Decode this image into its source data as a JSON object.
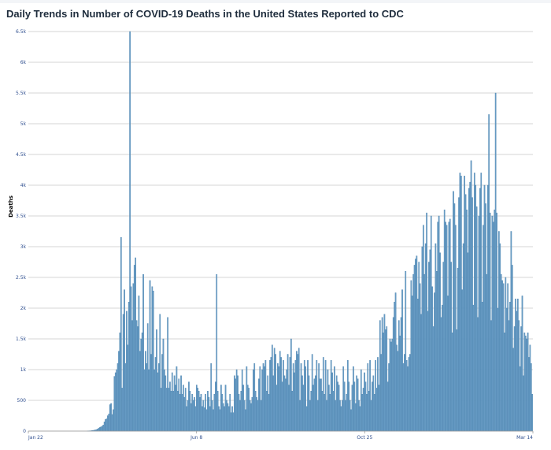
{
  "page": {
    "title": "Daily Trends in Number of COVID-19 Deaths in the United States Reported to CDC"
  },
  "chart_data": {
    "type": "bar",
    "title": "Daily Trends in Number of COVID-19 Deaths in the United States Reported to CDC",
    "xlabel": "",
    "ylabel": "Deaths",
    "ylim": [
      0,
      6500
    ],
    "y_ticks": [
      {
        "value": 0,
        "label": "0"
      },
      {
        "value": 500,
        "label": "500"
      },
      {
        "value": 1000,
        "label": "1k"
      },
      {
        "value": 1500,
        "label": "1.5k"
      },
      {
        "value": 2000,
        "label": "2k"
      },
      {
        "value": 2500,
        "label": "2.5k"
      },
      {
        "value": 3000,
        "label": "3k"
      },
      {
        "value": 3500,
        "label": "3.5k"
      },
      {
        "value": 4000,
        "label": "4k"
      },
      {
        "value": 4500,
        "label": "4.5k"
      },
      {
        "value": 5000,
        "label": "5k"
      },
      {
        "value": 5500,
        "label": "5.5k"
      },
      {
        "value": 6000,
        "label": "6k"
      },
      {
        "value": 6500,
        "label": "6.5k"
      }
    ],
    "x_ticks": [
      "Jan 22",
      "Jun 8",
      "Oct 25",
      "Mar 14"
    ],
    "x_range": [
      "Jan 22",
      "Mar 14"
    ],
    "bar_color": "#6a9ec6",
    "grid": true,
    "series": [
      {
        "values": [
          0,
          0,
          0,
          0,
          0,
          0,
          0,
          0,
          0,
          0,
          0,
          0,
          0,
          0,
          0,
          0,
          0,
          0,
          0,
          0,
          0,
          0,
          0,
          0,
          0,
          0,
          0,
          0,
          0,
          0,
          0,
          0,
          0,
          0,
          0,
          0,
          0,
          0,
          0,
          0,
          0,
          0,
          0,
          0,
          0,
          0,
          0,
          0,
          0,
          0,
          0,
          0,
          0,
          2,
          3,
          5,
          6,
          10,
          12,
          15,
          20,
          25,
          35,
          50,
          60,
          70,
          80,
          100,
          150,
          190,
          200,
          250,
          280,
          430,
          450,
          270,
          350,
          890,
          950,
          1000,
          1100,
          1300,
          1600,
          3150,
          700,
          1900,
          2300,
          1100,
          1950,
          1400,
          2100,
          6500,
          2350,
          1800,
          2400,
          2700,
          2820,
          1800,
          1700,
          2200,
          1300,
          1500,
          1600,
          2550,
          1000,
          1300,
          1100,
          1750,
          1000,
          2450,
          1250,
          2350,
          2280,
          1000,
          1200,
          1650,
          950,
          1100,
          1900,
          700,
          1250,
          1500,
          1000,
          900,
          700,
          1850,
          700,
          800,
          650,
          950,
          650,
          900,
          750,
          1050,
          650,
          850,
          600,
          900,
          600,
          750,
          550,
          700,
          400,
          500,
          800,
          650,
          450,
          600,
          500,
          550,
          400,
          750,
          700,
          650,
          550,
          600,
          400,
          500,
          380,
          600,
          350,
          650,
          550,
          400,
          1100,
          500,
          350,
          600,
          800,
          2550,
          650,
          400,
          350,
          750,
          600,
          450,
          400,
          750,
          500,
          450,
          400,
          600,
          300,
          400,
          300,
          900,
          850,
          1000,
          900,
          600,
          500,
          650,
          1000,
          750,
          500,
          350,
          1050,
          750,
          700,
          500,
          450,
          550,
          1000,
          1100,
          650,
          550,
          500,
          850,
          1050,
          500,
          1000,
          1100,
          1050,
          1150,
          650,
          900,
          600,
          1150,
          1200,
          1400,
          900,
          1350,
          1250,
          750,
          1100,
          1050,
          1300,
          1200,
          800,
          1150,
          900,
          850,
          1000,
          1250,
          750,
          1200,
          1500,
          650,
          1100,
          950,
          1150,
          1300,
          1250,
          1350,
          500,
          1100,
          900,
          750,
          1150,
          1050,
          400,
          1150,
          900,
          500,
          650,
          1250,
          750,
          850,
          900,
          1150,
          500,
          1100,
          850,
          850,
          650,
          1200,
          600,
          1150,
          500,
          1000,
          750,
          600,
          1150,
          950,
          650,
          1050,
          500,
          900,
          800,
          750,
          500,
          400,
          500,
          1050,
          800,
          500,
          600,
          1150,
          800,
          500,
          350,
          750,
          1050,
          800,
          450,
          900,
          850,
          500,
          400,
          1000,
          600,
          700,
          950,
          800,
          600,
          1100,
          650,
          1150,
          500,
          800,
          900,
          600,
          1150,
          700,
          1200,
          750,
          1800,
          1250,
          1850,
          1600,
          1900,
          1650,
          1700,
          800,
          1100,
          1500,
          1450,
          1500,
          1850,
          2100,
          2250,
          1400,
          1300,
          1800,
          1550,
          1850,
          2300,
          1100,
          1250,
          2600,
          1150,
          1050,
          1200,
          1250,
          2450,
          2200,
          2550,
          2700,
          2800,
          2850,
          2150,
          2750,
          2400,
          1900,
          3000,
          3350,
          2550,
          3050,
          3550,
          1950,
          2750,
          2950,
          3500,
          2350,
          1700,
          2250,
          3050,
          2600,
          3400,
          3500,
          2900,
          1850,
          2050,
          2750,
          3600,
          3400,
          3350,
          2200,
          3400,
          3450,
          2750,
          1600,
          3900,
          3700,
          3350,
          1650,
          2650,
          3800,
          4200,
          4150,
          2300,
          3050,
          4150,
          3850,
          3600,
          2900,
          3950,
          4050,
          4400,
          3800,
          2050,
          4200,
          4000,
          3650,
          1850,
          3500,
          3950,
          4200,
          2100,
          3350,
          4000,
          3700,
          2550,
          4000,
          5150,
          3550,
          1800,
          3500,
          3400,
          3600,
          5500,
          3550,
          2000,
          3250,
          3050,
          2550,
          2450,
          2400,
          1600,
          2500,
          2000,
          2400,
          1800,
          2100,
          3250,
          2700,
          1350,
          1700,
          2150,
          1950,
          2150,
          1800,
          1050,
          1700,
          2200,
          900,
          1600,
          1550,
          1500,
          1600,
          1200,
          1400,
          1100,
          600
        ]
      }
    ]
  }
}
